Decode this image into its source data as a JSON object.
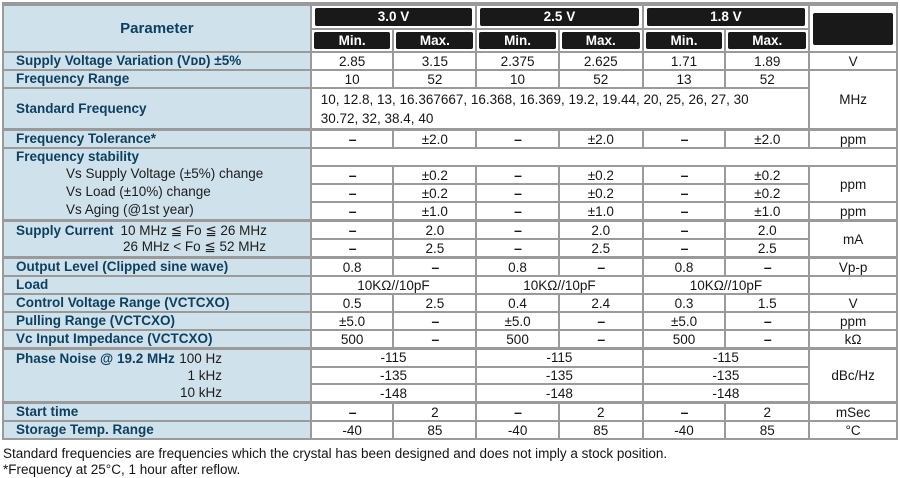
{
  "table": {
    "header": {
      "parameter_label": "Parameter",
      "voltage_groups": [
        "3.0 V",
        "2.5 V",
        "1.8 V"
      ],
      "min_label": "Min.",
      "max_label": "Max."
    },
    "rows": [
      {
        "name": "supply-voltage-variation",
        "param": {
          "lines": [
            {
              "b": "Supply Voltage Variation (Vᴅᴅ) ±5%"
            }
          ]
        },
        "cells": [
          "2.85",
          "3.15",
          "2.375",
          "2.625",
          "1.71",
          "1.89"
        ],
        "unit": {
          "t": "V"
        }
      },
      {
        "name": "frequency-range",
        "param": {
          "lines": [
            {
              "b": "Frequency Range"
            }
          ]
        },
        "cells": [
          "10",
          "52",
          "10",
          "52",
          "13",
          "52"
        ],
        "unit": {
          "t": "MHz",
          "rs": 2
        }
      },
      {
        "name": "standard-frequency",
        "cls": "tall",
        "param": {
          "lines": [
            {
              "b": "Standard Frequency"
            }
          ]
        },
        "cells": [
          {
            "cs": 6,
            "left": true,
            "lines": [
              "10, 12.8, 13, 16.367667, 16.368, 16.369, 19.2, 19.44, 20, 25,  26, 27, 30",
              "30.72, 32, 38.4, 40"
            ]
          }
        ]
      },
      {
        "name": "frequency-tolerance",
        "cls": "group-start",
        "param": {
          "lines": [
            {
              "b": "Frequency Tolerance*"
            }
          ]
        },
        "cells": [
          "–",
          "±2.0",
          "–",
          "±2.0",
          "–",
          "±2.0"
        ],
        "unit": {
          "t": "ppm"
        }
      },
      {
        "name": "frequency-stability-header",
        "cls": "blank",
        "param": {
          "lines": [
            {
              "b": "Frequency stability"
            }
          ]
        },
        "cells": [
          {
            "t": "",
            "cs": 7
          }
        ]
      },
      {
        "name": "stability-vs-supply-voltage",
        "param": {
          "npb": true,
          "lines": [
            {
              "t": "Vs Supply Voltage (±5%) change",
              "ind": 62
            }
          ]
        },
        "cells": [
          "–",
          "±0.2",
          "–",
          "±0.2",
          "–",
          "±0.2"
        ],
        "unit": {
          "t": "ppm",
          "rs": 2
        }
      },
      {
        "name": "stability-vs-load",
        "param": {
          "npb": true,
          "lines": [
            {
              "t": "Vs Load (±10%) change",
              "ind": 62
            }
          ]
        },
        "cells": [
          "–",
          "±0.2",
          "–",
          "±0.2",
          "–",
          "±0.2"
        ]
      },
      {
        "name": "stability-vs-aging",
        "param": {
          "npb": true,
          "lines": [
            {
              "t": "Vs Aging (@1st year)",
              "ind": 62
            }
          ]
        },
        "cells": [
          "–",
          "±1.0",
          "–",
          "±1.0",
          "–",
          "±1.0"
        ],
        "unit": {
          "t": "ppm"
        }
      },
      {
        "name": "supply-current-low",
        "cls": "group-start",
        "param": {
          "rs": 2,
          "lines": [
            {
              "b": "Supply Current",
              "t": "10 MHz ≦ Fo ≦ 26 MHz"
            },
            {
              "t": "26 MHz < Fo ≦ 52 MHz",
              "ind": 119
            }
          ]
        },
        "cells": [
          "–",
          "2.0",
          "–",
          "2.0",
          "–",
          "2.0"
        ],
        "unit": {
          "t": "mA",
          "rs": 2
        }
      },
      {
        "name": "supply-current-high",
        "cells": [
          "–",
          "2.5",
          "–",
          "2.5",
          "–",
          "2.5"
        ]
      },
      {
        "name": "output-level",
        "cls": "group-start",
        "param": {
          "lines": [
            {
              "b": "Output Level (Clipped sine wave)"
            }
          ]
        },
        "cells": [
          "0.8",
          "–",
          "0.8",
          "–",
          "0.8",
          "–"
        ],
        "unit": {
          "t": "Vp-p"
        }
      },
      {
        "name": "load",
        "param": {
          "lines": [
            {
              "b": "Load"
            }
          ]
        },
        "cells": [
          {
            "t": "10KΩ//10pF",
            "cs": 2
          },
          {
            "t": "10KΩ//10pF",
            "cs": 2
          },
          {
            "t": "10KΩ//10pF",
            "cs": 2
          }
        ],
        "unit": {
          "t": ""
        }
      },
      {
        "name": "control-voltage-range",
        "param": {
          "lines": [
            {
              "b": "Control Voltage Range (VCTCXO)"
            }
          ]
        },
        "cells": [
          "0.5",
          "2.5",
          "0.4",
          "2.4",
          "0.3",
          "1.5"
        ],
        "unit": {
          "t": "V"
        }
      },
      {
        "name": "pulling-range",
        "param": {
          "lines": [
            {
              "b": "Pulling Range (VCTCXO)"
            }
          ]
        },
        "cells": [
          "±5.0",
          "–",
          "±5.0",
          "–",
          "±5.0",
          "–"
        ],
        "unit": {
          "t": "ppm"
        }
      },
      {
        "name": "vc-input-impedance",
        "param": {
          "lines": [
            {
              "b": "Vc Input Impedance (VCTCXO)"
            }
          ]
        },
        "cells": [
          "500",
          "–",
          "500",
          "–",
          "500",
          "–"
        ],
        "unit": {
          "t": "kΩ"
        }
      },
      {
        "name": "phase-noise-100hz",
        "cls": "group-start",
        "param": {
          "rs": 3,
          "h17": true,
          "lines": [
            {
              "b": "Phase Noise @ 19.2 MHz",
              "r": "100 Hz"
            },
            {
              "r": "1 kHz"
            },
            {
              "r": "10 kHz"
            }
          ]
        },
        "cells": [
          {
            "t": "-115",
            "cs": 2
          },
          {
            "t": "-115",
            "cs": 2
          },
          {
            "t": "-115",
            "cs": 2
          }
        ],
        "unit": {
          "t": "dBc/Hz",
          "rs": 3
        }
      },
      {
        "name": "phase-noise-1khz",
        "cells": [
          {
            "t": "-135",
            "cs": 2
          },
          {
            "t": "-135",
            "cs": 2
          },
          {
            "t": "-135",
            "cs": 2
          }
        ]
      },
      {
        "name": "phase-noise-10khz",
        "cells": [
          {
            "t": "-148",
            "cs": 2
          },
          {
            "t": "-148",
            "cs": 2
          },
          {
            "t": "-148",
            "cs": 2
          }
        ]
      },
      {
        "name": "start-time",
        "cls": "group-start",
        "param": {
          "lines": [
            {
              "b": "Start time"
            }
          ]
        },
        "cells": [
          "–",
          "2",
          "–",
          "2",
          "–",
          "2"
        ],
        "unit": {
          "t": "mSec"
        }
      },
      {
        "name": "storage-temp-range",
        "param": {
          "lines": [
            {
              "b": "Storage Temp. Range"
            }
          ]
        },
        "cells": [
          "-40",
          "85",
          "-40",
          "85",
          "-40",
          "85"
        ],
        "unit": {
          "t": "°C"
        }
      }
    ]
  },
  "footnotes": [
    "Standard frequencies are frequencies which the crystal has been designed and does not imply a stock position.",
    "*Frequency at 25°C, 1 hour after reflow."
  ],
  "colors": {
    "param_bg": "#cfe2eb",
    "param_text": "#0d3f60",
    "header_bg": "#191919",
    "header_text": "#ffffff",
    "border": "#9a9a9a"
  }
}
